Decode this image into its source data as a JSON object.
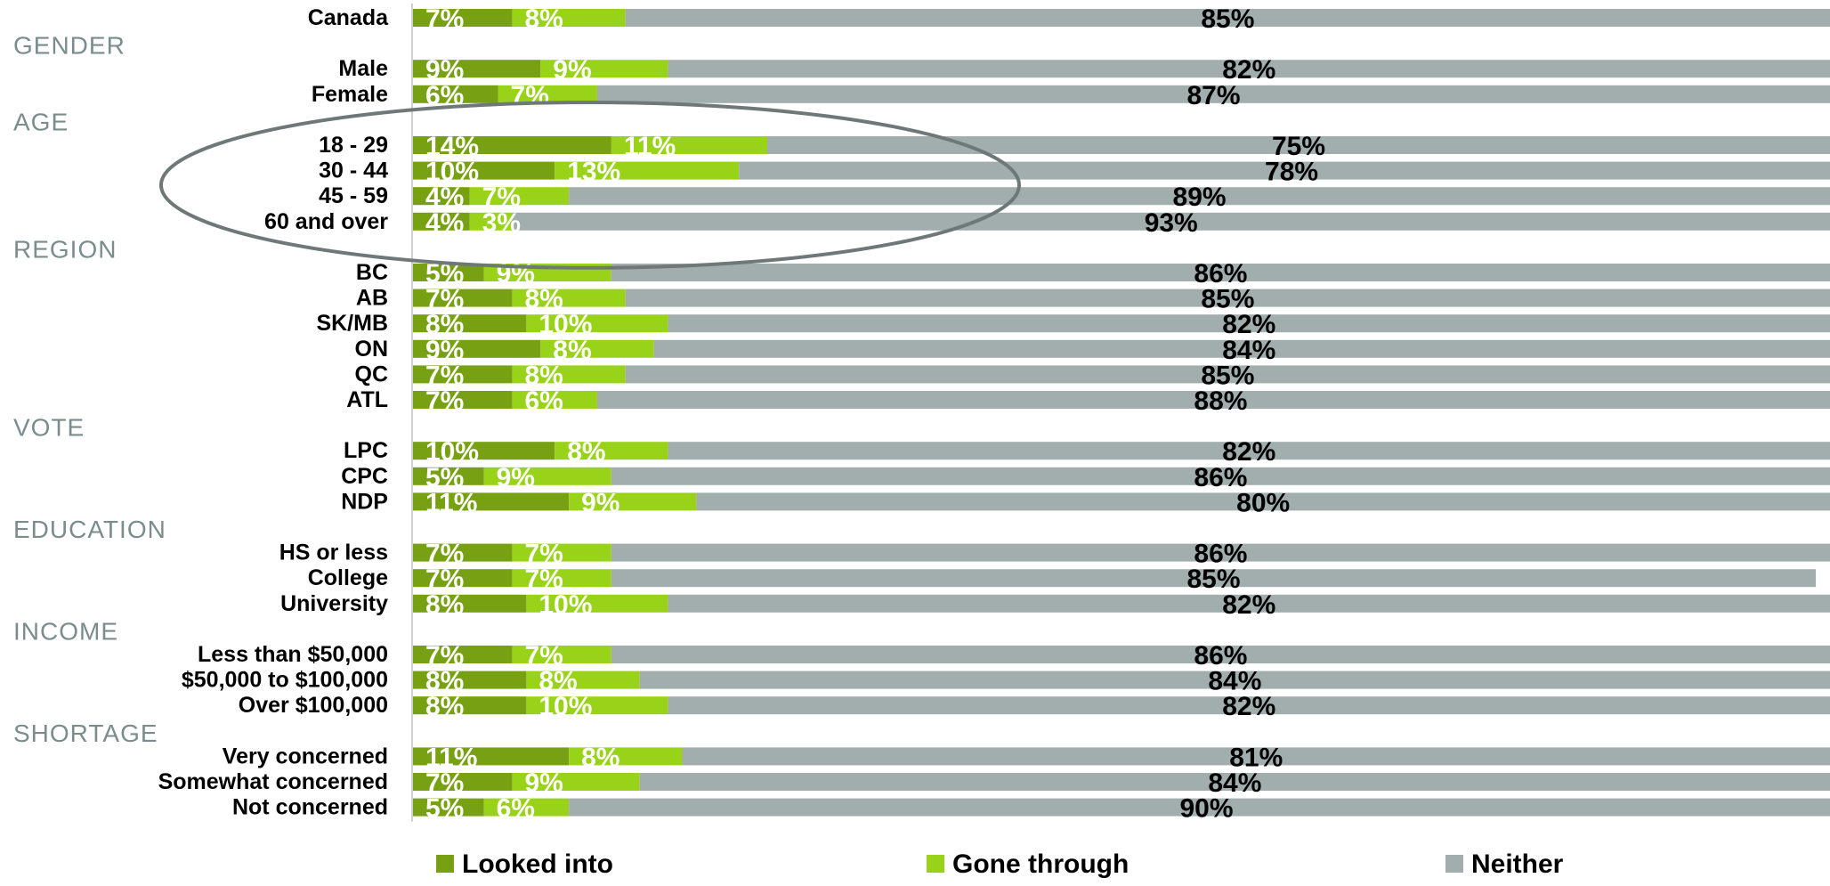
{
  "chart_data": {
    "type": "bar",
    "orientation": "horizontal",
    "stacked": true,
    "series": [
      {
        "name": "Looked into",
        "color": "#77a012"
      },
      {
        "name": "Gone through",
        "color": "#99d319"
      },
      {
        "name": "Neither",
        "color": "#a2aeae"
      }
    ],
    "groups": [
      {
        "label": "",
        "rows": [
          {
            "label": "Canada",
            "values": [
              7,
              8,
              85
            ]
          }
        ]
      },
      {
        "label": "GENDER",
        "rows": [
          {
            "label": "Male",
            "values": [
              9,
              9,
              82
            ]
          },
          {
            "label": "Female",
            "values": [
              6,
              7,
              87
            ]
          }
        ]
      },
      {
        "label": "AGE",
        "rows": [
          {
            "label": "18 - 29",
            "values": [
              14,
              11,
              75
            ]
          },
          {
            "label": "30 - 44",
            "values": [
              10,
              13,
              78
            ]
          },
          {
            "label": "45 - 59",
            "values": [
              4,
              7,
              89
            ]
          },
          {
            "label": "60 and over",
            "values": [
              4,
              3,
              93
            ]
          }
        ]
      },
      {
        "label": "REGION",
        "rows": [
          {
            "label": "BC",
            "values": [
              5,
              9,
              86
            ]
          },
          {
            "label": "AB",
            "values": [
              7,
              8,
              85
            ]
          },
          {
            "label": "SK/MB",
            "values": [
              8,
              10,
              82
            ]
          },
          {
            "label": "ON",
            "values": [
              9,
              8,
              84
            ]
          },
          {
            "label": "QC",
            "values": [
              7,
              8,
              85
            ]
          },
          {
            "label": "ATL",
            "values": [
              7,
              6,
              88
            ]
          }
        ]
      },
      {
        "label": "VOTE",
        "rows": [
          {
            "label": "LPC",
            "values": [
              10,
              8,
              82
            ]
          },
          {
            "label": "CPC",
            "values": [
              5,
              9,
              86
            ]
          },
          {
            "label": "NDP",
            "values": [
              11,
              9,
              80
            ]
          }
        ]
      },
      {
        "label": "EDUCATION",
        "rows": [
          {
            "label": "HS or less",
            "values": [
              7,
              7,
              86
            ]
          },
          {
            "label": "College",
            "values": [
              7,
              7,
              85
            ]
          },
          {
            "label": "University",
            "values": [
              8,
              10,
              82
            ]
          }
        ]
      },
      {
        "label": "INCOME",
        "rows": [
          {
            "label": "Less than $50,000",
            "values": [
              7,
              7,
              86
            ]
          },
          {
            "label": "$50,000 to $100,000",
            "values": [
              8,
              8,
              84
            ]
          },
          {
            "label": "Over $100,000",
            "values": [
              8,
              10,
              82
            ]
          }
        ]
      },
      {
        "label": "SHORTAGE",
        "rows": [
          {
            "label": "Very concerned",
            "values": [
              11,
              8,
              81
            ]
          },
          {
            "label": "Somewhat concerned",
            "values": [
              7,
              9,
              84
            ]
          },
          {
            "label": "Not concerned",
            "values": [
              5,
              6,
              90
            ]
          }
        ]
      }
    ],
    "value_suffix": "%",
    "highlight": "AGE",
    "legend_position": "bottom"
  }
}
